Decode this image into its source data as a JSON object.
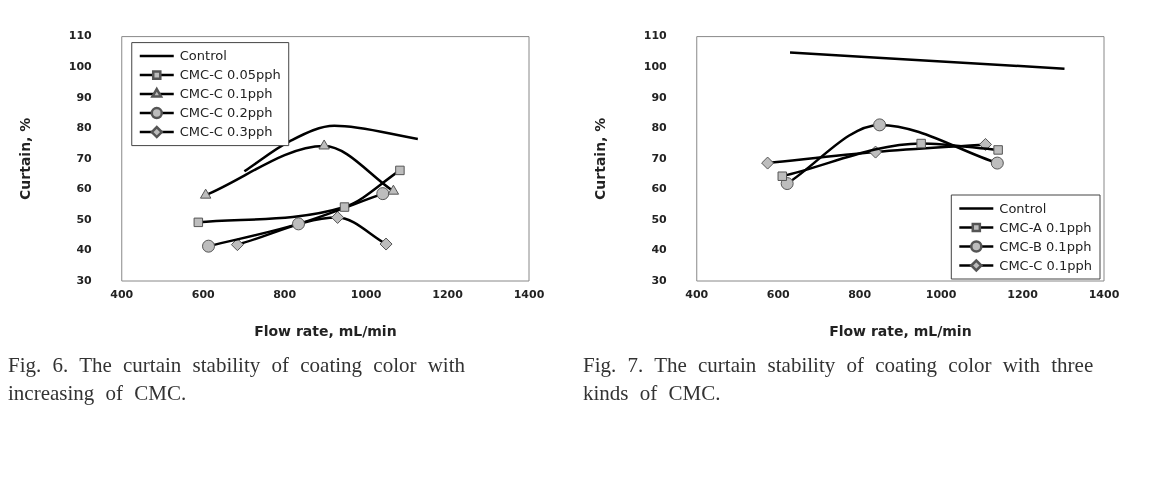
{
  "chart_data": [
    {
      "type": "line",
      "xlabel": "Flow rate, mL/min",
      "ylabel": "Curtain, %",
      "xlim": [
        400,
        1400
      ],
      "xticks": [
        400,
        600,
        800,
        1000,
        1200,
        1400
      ],
      "ylim": [
        30,
        110
      ],
      "yticks": [
        30,
        40,
        50,
        60,
        70,
        80,
        90,
        100,
        110
      ],
      "grid": false,
      "legend": "top left",
      "annotations": [
        "Fig. 6. The curtain stability of coating color with increasing of CMC."
      ],
      "series": [
        {
          "name": "Control",
          "color": "#000000",
          "marker": "none",
          "x": [
            701,
            813,
            922,
            1127
          ],
          "values": [
            65.9,
            75.8,
            80.8,
            76.5
          ]
        },
        {
          "name": "CMC-C 0.05pph",
          "color": "#000000",
          "marker": "square",
          "x": [
            588,
            947,
            1083
          ],
          "values": [
            49.2,
            54.2,
            66.2
          ]
        },
        {
          "name": "CMC-C 0.1pph",
          "color": "#000000",
          "marker": "triangle",
          "x": [
            606,
            897,
            1067
          ],
          "values": [
            58.1,
            74.2,
            59.4
          ]
        },
        {
          "name": "CMC-C 0.2pph",
          "color": "#000000",
          "marker": "circle",
          "x": [
            613,
            834,
            1041
          ],
          "values": [
            41.4,
            48.7,
            58.6
          ]
        },
        {
          "name": "CMC-C 0.3pph",
          "color": "#000000",
          "marker": "diamond",
          "x": [
            684,
            930,
            1049
          ],
          "values": [
            41.9,
            50.8,
            42.1
          ]
        }
      ]
    },
    {
      "type": "line",
      "xlabel": "Flow rate, mL/min",
      "ylabel": "Curtain, %",
      "xlim": [
        400,
        1400
      ],
      "xticks": [
        400,
        600,
        800,
        1000,
        1200,
        1400
      ],
      "ylim": [
        30,
        110
      ],
      "yticks": [
        30,
        40,
        50,
        60,
        70,
        80,
        90,
        100,
        110
      ],
      "grid": false,
      "legend": "bottom right",
      "annotations": [
        "Fig. 7. The curtain stability of coating color with three kinds of CMC."
      ],
      "series": [
        {
          "name": "Control",
          "color": "#000000",
          "marker": "none",
          "x": [
            629,
            1303
          ],
          "values": [
            104.8,
            99.5
          ]
        },
        {
          "name": "CMC-A 0.1pph",
          "color": "#000000",
          "marker": "square",
          "x": [
            610,
            951,
            1140
          ],
          "values": [
            64.3,
            75,
            72.9
          ]
        },
        {
          "name": "CMC-B 0.1pph",
          "color": "#000000",
          "marker": "circle",
          "x": [
            622,
            849,
            1138
          ],
          "values": [
            61.9,
            81.1,
            68.6
          ]
        },
        {
          "name": "CMC-C 0.1pph",
          "color": "#000000",
          "marker": "diamond",
          "x": [
            574,
            839,
            1109
          ],
          "values": [
            68.6,
            72.2,
            74.7
          ]
        }
      ]
    }
  ]
}
